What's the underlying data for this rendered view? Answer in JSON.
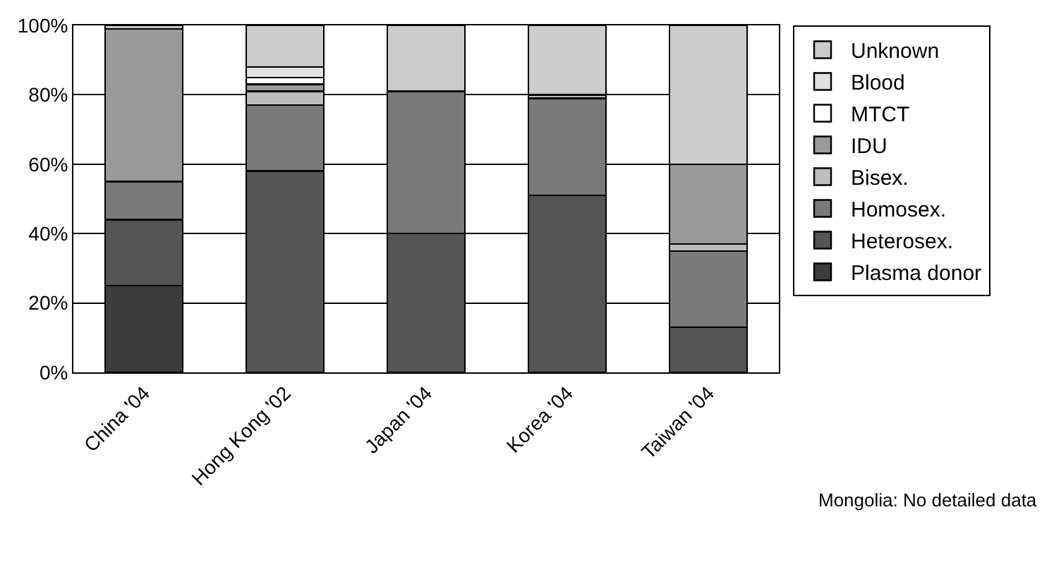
{
  "chart_data": {
    "type": "bar",
    "stacked": true,
    "categories": [
      "China '04",
      "Hong Kong '02",
      "Japan '04",
      "Korea '04",
      "Taiwan '04"
    ],
    "series": [
      {
        "name": "Plasma donor",
        "color": "#3c3c3c",
        "values": [
          25,
          null,
          null,
          null,
          null
        ]
      },
      {
        "name": "Heterosex.",
        "color": "#555555",
        "values": [
          19,
          58,
          40,
          51,
          13
        ]
      },
      {
        "name": "Homosex.",
        "color": "#7a7a7a",
        "values": [
          11,
          19,
          41,
          28,
          22
        ]
      },
      {
        "name": "Bisex.",
        "color": "#bdbdbd",
        "values": [
          null,
          4,
          null,
          1,
          2
        ]
      },
      {
        "name": "IDU",
        "color": "#9a9a9a",
        "values": [
          44,
          2,
          null,
          null,
          23
        ]
      },
      {
        "name": "MTCT",
        "color": "#ffffff",
        "values": [
          null,
          2,
          null,
          null,
          null
        ]
      },
      {
        "name": "Blood",
        "color": "#e2e2e2",
        "values": [
          null,
          3,
          null,
          null,
          null
        ]
      },
      {
        "name": "Unknown",
        "color": "#cccccc",
        "values": [
          1,
          12,
          19,
          20,
          40
        ]
      }
    ],
    "ylim": [
      0,
      100
    ],
    "yticks": [
      {
        "value": 0,
        "label": "0%"
      },
      {
        "value": 20,
        "label": "20%"
      },
      {
        "value": 40,
        "label": "40%"
      },
      {
        "value": 60,
        "label": "60%"
      },
      {
        "value": 80,
        "label": "80%"
      },
      {
        "value": 100,
        "label": "100%"
      }
    ],
    "grid": "y",
    "legend": "right",
    "annotations": [
      "Mongolia: No detailed data"
    ]
  }
}
